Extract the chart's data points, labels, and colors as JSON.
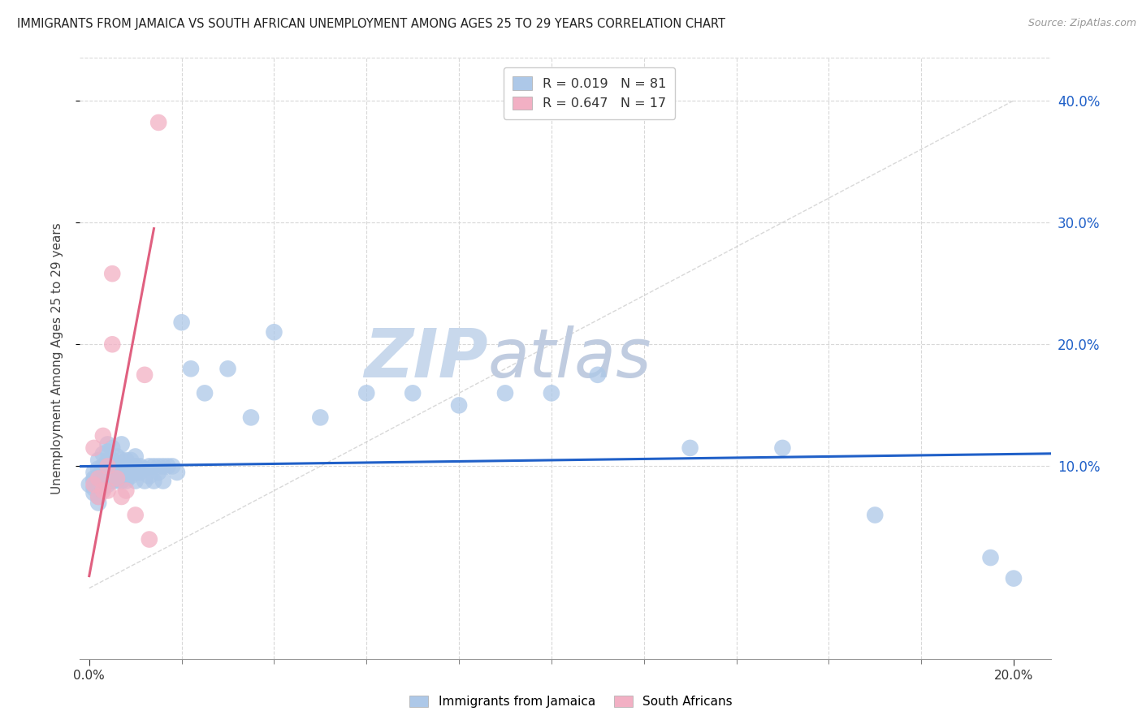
{
  "title": "IMMIGRANTS FROM JAMAICA VS SOUTH AFRICAN UNEMPLOYMENT AMONG AGES 25 TO 29 YEARS CORRELATION CHART",
  "source": "Source: ZipAtlas.com",
  "ylabel": "Unemployment Among Ages 25 to 29 years",
  "xlim": [
    -0.002,
    0.208
  ],
  "ylim": [
    -0.058,
    0.435
  ],
  "ytick_positions": [
    0.1,
    0.2,
    0.3,
    0.4
  ],
  "xtick_labels_pos": [
    0.0,
    0.2
  ],
  "legend_labels": [
    "Immigrants from Jamaica",
    "South Africans"
  ],
  "R_blue": 0.019,
  "N_blue": 81,
  "R_pink": 0.647,
  "N_pink": 17,
  "blue_color": "#adc8e8",
  "pink_color": "#f2b0c4",
  "blue_line_color": "#2060c8",
  "pink_line_color": "#e06080",
  "diag_line_color": "#c8c8c8",
  "grid_color": "#d8d8d8",
  "watermark_zip_color": "#c8d8ec",
  "watermark_atlas_color": "#c0cce0",
  "blue_scatter_x": [
    0.0,
    0.001,
    0.001,
    0.001,
    0.001,
    0.001,
    0.002,
    0.002,
    0.002,
    0.002,
    0.002,
    0.002,
    0.003,
    0.003,
    0.003,
    0.003,
    0.003,
    0.004,
    0.004,
    0.004,
    0.004,
    0.004,
    0.004,
    0.005,
    0.005,
    0.005,
    0.005,
    0.005,
    0.006,
    0.006,
    0.006,
    0.006,
    0.007,
    0.007,
    0.007,
    0.007,
    0.007,
    0.008,
    0.008,
    0.008,
    0.008,
    0.009,
    0.009,
    0.009,
    0.01,
    0.01,
    0.01,
    0.01,
    0.011,
    0.011,
    0.012,
    0.012,
    0.013,
    0.013,
    0.014,
    0.014,
    0.015,
    0.015,
    0.016,
    0.016,
    0.017,
    0.018,
    0.019,
    0.02,
    0.022,
    0.025,
    0.03,
    0.035,
    0.04,
    0.05,
    0.06,
    0.07,
    0.08,
    0.09,
    0.1,
    0.11,
    0.13,
    0.15,
    0.17,
    0.195,
    0.2
  ],
  "blue_scatter_y": [
    0.085,
    0.09,
    0.095,
    0.088,
    0.082,
    0.078,
    0.092,
    0.098,
    0.105,
    0.085,
    0.075,
    0.07,
    0.1,
    0.095,
    0.088,
    0.082,
    0.11,
    0.098,
    0.105,
    0.09,
    0.085,
    0.112,
    0.118,
    0.1,
    0.095,
    0.088,
    0.105,
    0.115,
    0.1,
    0.095,
    0.088,
    0.108,
    0.098,
    0.105,
    0.092,
    0.088,
    0.118,
    0.1,
    0.095,
    0.105,
    0.088,
    0.098,
    0.105,
    0.092,
    0.1,
    0.095,
    0.088,
    0.108,
    0.1,
    0.095,
    0.098,
    0.088,
    0.1,
    0.092,
    0.1,
    0.088,
    0.1,
    0.095,
    0.1,
    0.088,
    0.1,
    0.1,
    0.095,
    0.218,
    0.18,
    0.16,
    0.18,
    0.14,
    0.21,
    0.14,
    0.16,
    0.16,
    0.15,
    0.16,
    0.16,
    0.175,
    0.115,
    0.115,
    0.06,
    0.025,
    0.008
  ],
  "pink_scatter_x": [
    0.001,
    0.001,
    0.002,
    0.002,
    0.003,
    0.003,
    0.004,
    0.004,
    0.005,
    0.005,
    0.006,
    0.007,
    0.008,
    0.01,
    0.012,
    0.013,
    0.015
  ],
  "pink_scatter_y": [
    0.085,
    0.115,
    0.075,
    0.09,
    0.08,
    0.125,
    0.1,
    0.08,
    0.2,
    0.258,
    0.09,
    0.075,
    0.08,
    0.06,
    0.175,
    0.04,
    0.382
  ],
  "blue_trend_slope": 0.05,
  "blue_trend_intercept": 0.1,
  "pink_trend_x0": 0.0,
  "pink_trend_y0": 0.01,
  "pink_trend_x1": 0.014,
  "pink_trend_y1": 0.295
}
